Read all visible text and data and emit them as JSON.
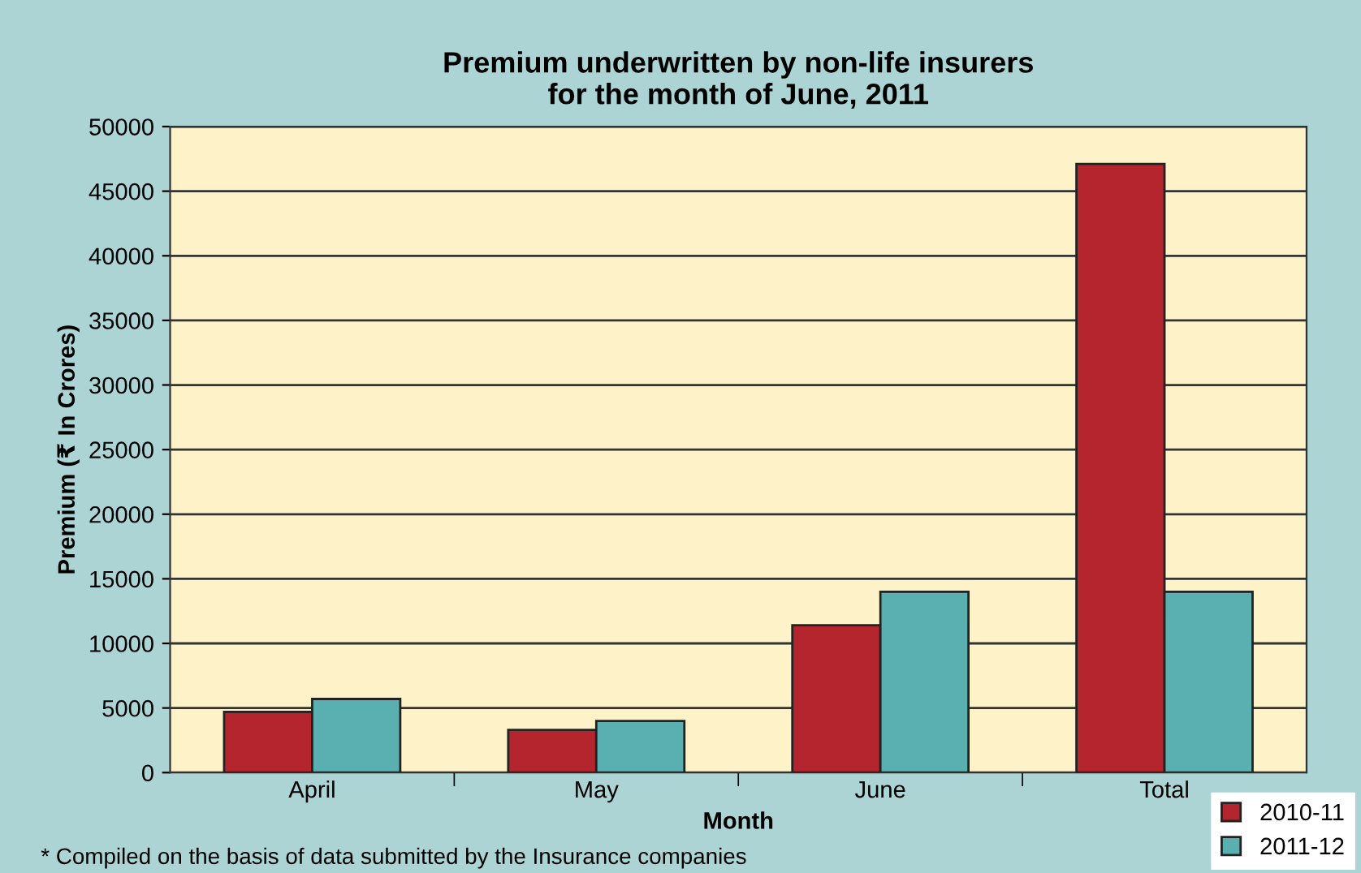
{
  "chart_data": {
    "type": "bar",
    "title": "Premium underwritten by non-life insurers\nfor the month of June, 2011",
    "xlabel": "Month",
    "ylabel": "Premium (₹ In Crores)",
    "categories": [
      "April",
      "May",
      "June",
      "Total"
    ],
    "series": [
      {
        "name": "2010-11",
        "color": "#b5252d",
        "values": [
          4700,
          3300,
          11400,
          47100
        ]
      },
      {
        "name": "2011-12",
        "color": "#5aafb0",
        "values": [
          5700,
          4000,
          14000,
          14000
        ]
      }
    ],
    "ylim": [
      0,
      50000
    ],
    "yticks": [
      0,
      5000,
      10000,
      15000,
      20000,
      25000,
      30000,
      35000,
      40000,
      45000,
      50000
    ],
    "grid": "y",
    "legend": "bottom right",
    "annotations": [
      "* Compiled on the basis of data submitted by the Insurance companies"
    ]
  }
}
